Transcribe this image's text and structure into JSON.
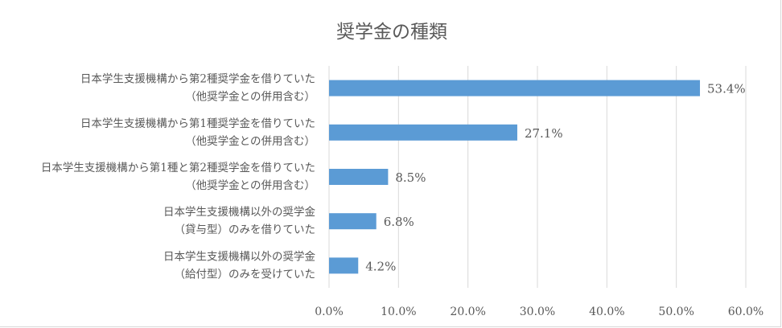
{
  "chart_data": {
    "type": "bar",
    "orientation": "horizontal",
    "title": "奨学金の種類",
    "categories": [
      [
        "日本学生支援機構から第2種奨学金を借りていた",
        "（他奨学金との併用含む）"
      ],
      [
        "日本学生支援機構から第1種奨学金を借りていた",
        "（他奨学金との併用含む）"
      ],
      [
        "日本学生支援機構から第1種と第2種奨学金を借りていた",
        "（他奨学金との併用含む）"
      ],
      [
        "日本学生支援機構以外の奨学金",
        "（貸与型）のみを借りていた"
      ],
      [
        "日本学生支援機構以外の奨学金",
        "（給付型）のみを受けていた"
      ]
    ],
    "values": [
      53.4,
      27.1,
      8.5,
      6.8,
      4.2
    ],
    "value_labels": [
      "53.4%",
      "27.1%",
      "8.5%",
      "6.8%",
      "4.2%"
    ],
    "xlim": [
      0,
      60
    ],
    "xticks": [
      0,
      10,
      20,
      30,
      40,
      50,
      60
    ],
    "xtick_labels": [
      "0.0%",
      "10.0%",
      "20.0%",
      "30.0%",
      "40.0%",
      "50.0%",
      "60.0%"
    ],
    "grid": true,
    "legend": "none",
    "bar_color": "#5b9bd5",
    "grid_color": "#d9d9d9",
    "text_color": "#595959"
  }
}
